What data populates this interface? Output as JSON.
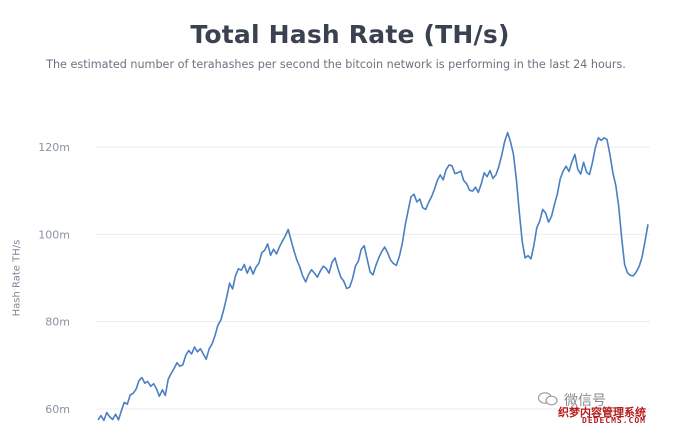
{
  "header": {
    "title": "Total Hash Rate (TH/s)",
    "subtitle": "The estimated number of terahashes per second the bitcoin network is performing in the last 24 hours."
  },
  "watermark": {
    "text": "微信号",
    "logo_text": "织梦内容管理系统",
    "site_text": "DEDECMS.COM"
  },
  "colors": {
    "line": "#4a7fc1",
    "grid": "#e9ecef",
    "tick": "#8a93a3"
  },
  "chart_data": {
    "type": "line",
    "title": "Total Hash Rate (TH/s)",
    "subtitle": "The estimated number of terahashes per second the bitcoin network is performing in the last 24 hours.",
    "xlabel": "",
    "ylabel": "Hash Rate TH/s",
    "ylim": [
      57,
      125
    ],
    "yticks": [
      60,
      80,
      100,
      120
    ],
    "ytick_labels": [
      "60m",
      "80m",
      "100m",
      "120m"
    ],
    "grid": true,
    "x": [
      0,
      1,
      2,
      3,
      4,
      5,
      6,
      7,
      8,
      9,
      10,
      11,
      12,
      13,
      14,
      15,
      16,
      17,
      18,
      19,
      20,
      21,
      22,
      23,
      24,
      25,
      26,
      27,
      28,
      29,
      30,
      31,
      32,
      33,
      34,
      35,
      36,
      37,
      38,
      39,
      40,
      41,
      42,
      43,
      44,
      45,
      46,
      47,
      48,
      49,
      50,
      51,
      52,
      53,
      54,
      55,
      56,
      57,
      58,
      59,
      60,
      61,
      62,
      63,
      64,
      65,
      66,
      67,
      68,
      69,
      70,
      71,
      72,
      73,
      74,
      75,
      76,
      77,
      78,
      79,
      80,
      81,
      82,
      83,
      84,
      85,
      86,
      87,
      88,
      89,
      90,
      91,
      92,
      93,
      94,
      95,
      96,
      97,
      98,
      99,
      100,
      101,
      102,
      103,
      104,
      105,
      106,
      107,
      108,
      109,
      110,
      111,
      112,
      113,
      114,
      115,
      116,
      117,
      118,
      119,
      120,
      121,
      122,
      123,
      124,
      125,
      126,
      127,
      128,
      129,
      130,
      131,
      132,
      133,
      134,
      135,
      136,
      137,
      138,
      139,
      140,
      141,
      142,
      143,
      144,
      145,
      146,
      147,
      148,
      149,
      150,
      151,
      152,
      153,
      154,
      155,
      156,
      157,
      158,
      159,
      160,
      161,
      162,
      163,
      164,
      165,
      166,
      167,
      168,
      169,
      170,
      171,
      172,
      173,
      174,
      175,
      176,
      177,
      178,
      179,
      180,
      181,
      182,
      183,
      184,
      185,
      186,
      187,
      188
    ],
    "values": [
      57.5,
      58.5,
      57.4,
      59.2,
      58.2,
      57.6,
      58.8,
      57.5,
      59.6,
      61.5,
      61.1,
      63.2,
      63.6,
      64.5,
      66.5,
      67.2,
      65.9,
      66.3,
      65.2,
      65.8,
      64.6,
      62.9,
      64.4,
      63.1,
      66.8,
      68.1,
      69.3,
      70.6,
      69.8,
      70.1,
      72.3,
      73.4,
      72.6,
      74.2,
      73.1,
      73.8,
      72.6,
      71.4,
      73.8,
      74.9,
      76.8,
      79.2,
      80.4,
      82.8,
      85.6,
      88.8,
      87.5,
      90.5,
      92.1,
      91.8,
      93.1,
      91.1,
      92.6,
      90.9,
      92.5,
      93.4,
      95.8,
      96.4,
      97.8,
      95.2,
      96.6,
      95.5,
      97.1,
      98.4,
      99.6,
      101.1,
      98.6,
      96.2,
      94.1,
      92.5,
      90.4,
      89.1,
      90.8,
      91.9,
      91.1,
      90.2,
      91.6,
      92.7,
      92.2,
      91.1,
      93.6,
      94.6,
      92.2,
      90.2,
      89.3,
      87.6,
      87.9,
      89.8,
      92.7,
      93.9,
      96.6,
      97.4,
      94.4,
      91.4,
      90.7,
      92.9,
      94.7,
      96.1,
      97.1,
      95.8,
      94.1,
      93.3,
      92.9,
      94.9,
      97.9,
      102.1,
      105.4,
      108.6,
      109.2,
      107.4,
      108.1,
      106.1,
      105.7,
      107.3,
      108.6,
      110.3,
      112.4,
      113.6,
      112.5,
      114.8,
      115.9,
      115.7,
      113.9,
      114.1,
      114.5,
      112.3,
      111.6,
      110.1,
      109.9,
      110.8,
      109.6,
      111.5,
      114.1,
      113.2,
      114.6,
      112.8,
      113.6,
      115.5,
      118.1,
      121.2,
      123.3,
      121.2,
      118.4,
      112.5,
      105.1,
      98.4,
      94.6,
      95.1,
      94.4,
      97.5,
      101.5,
      103.1,
      105.7,
      104.9,
      102.8,
      104.1,
      106.8,
      109.2,
      112.7,
      114.5,
      115.6,
      114.4,
      116.6,
      118.3,
      114.9,
      113.8,
      116.5,
      114.2,
      113.7,
      116.4,
      119.8,
      122.1,
      121.5,
      122.1,
      121.7,
      118.2,
      114.1,
      111.2,
      106.4,
      99.1,
      93.1,
      91.2,
      90.6,
      90.5,
      91.4,
      92.7,
      94.8,
      98.5,
      102.3
    ]
  }
}
